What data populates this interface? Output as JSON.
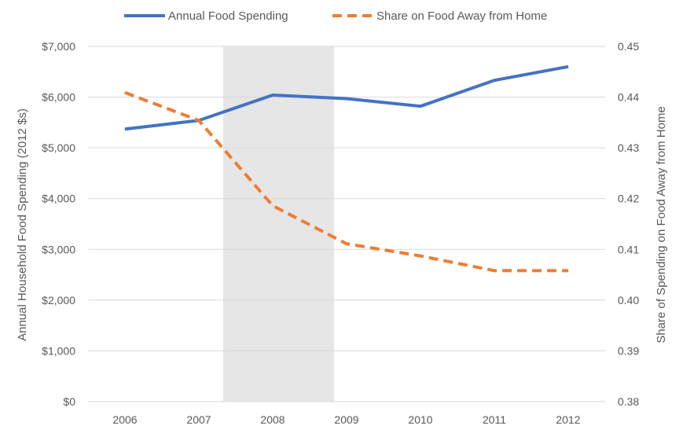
{
  "chart_data": {
    "type": "line",
    "title": "",
    "x": [
      "2006",
      "2007",
      "2008",
      "2009",
      "2010",
      "2011",
      "2012"
    ],
    "series": [
      {
        "name": "Annual Food Spending",
        "axis": "left",
        "style": "solid",
        "color": "#4472C4",
        "values": [
          5370,
          5540,
          6040,
          5970,
          5820,
          6330,
          6600
        ]
      },
      {
        "name": "Share on Food Away from Home",
        "axis": "right",
        "style": "dashed",
        "color": "#ED7D31",
        "values": [
          0.4409,
          0.4354,
          0.4186,
          0.4111,
          0.4087,
          0.4058,
          0.4058
        ]
      }
    ],
    "shaded_region": {
      "from": 2007.33,
      "to": 2008.83,
      "color": "#E6E6E6"
    },
    "ylabel": "Annual Household Food Spending (2012 $s)",
    "ylim": [
      0,
      7000
    ],
    "yticks": [
      {
        "value": 0,
        "label": "$0"
      },
      {
        "value": 1000,
        "label": "$1,000"
      },
      {
        "value": 2000,
        "label": "$2,000"
      },
      {
        "value": 3000,
        "label": "$3,000"
      },
      {
        "value": 4000,
        "label": "$4,000"
      },
      {
        "value": 5000,
        "label": "$5,000"
      },
      {
        "value": 6000,
        "label": "$6,000"
      },
      {
        "value": 7000,
        "label": "$7,000"
      }
    ],
    "y2label": "Share of Spending on Food Away from Home",
    "y2lim": [
      0.38,
      0.45
    ],
    "y2ticks": [
      {
        "value": 0.38,
        "label": "0.38"
      },
      {
        "value": 0.39,
        "label": "0.39"
      },
      {
        "value": 0.4,
        "label": "0.40"
      },
      {
        "value": 0.41,
        "label": "0.41"
      },
      {
        "value": 0.42,
        "label": "0.42"
      },
      {
        "value": 0.43,
        "label": "0.43"
      },
      {
        "value": 0.44,
        "label": "0.44"
      },
      {
        "value": 0.45,
        "label": "0.45"
      }
    ],
    "grid": true,
    "legend_position": "top"
  }
}
